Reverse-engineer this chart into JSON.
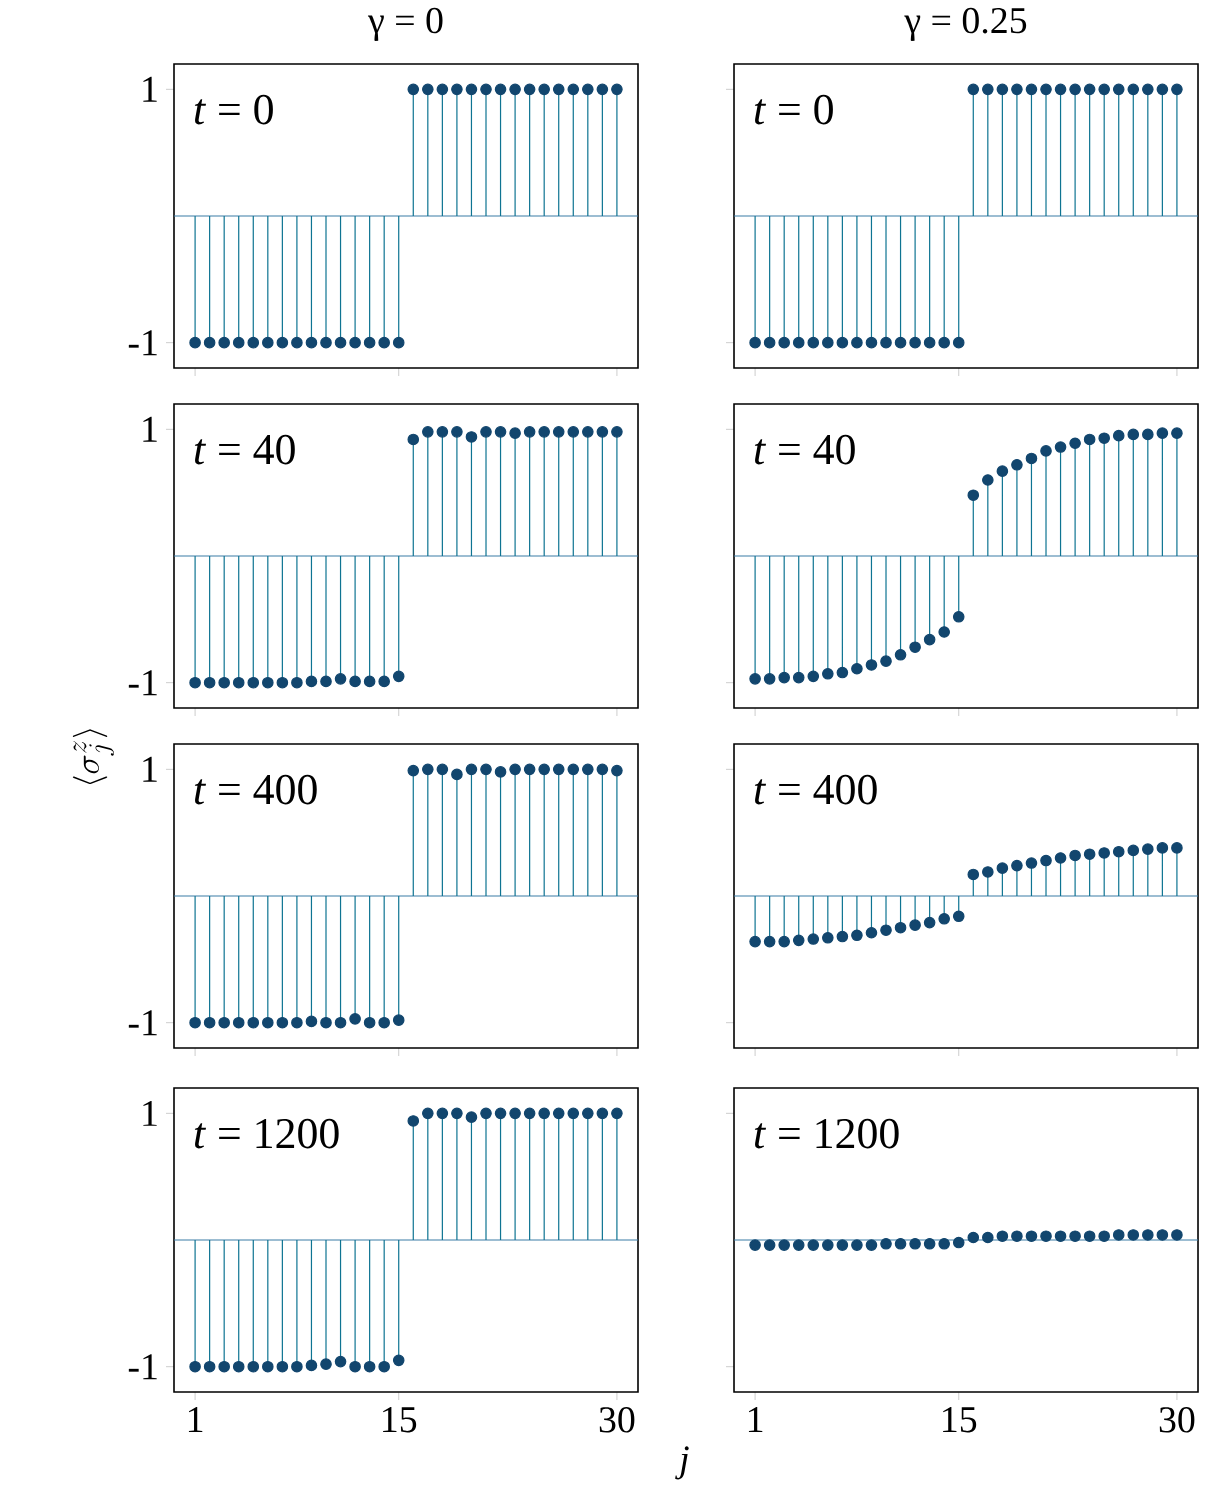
{
  "chart_data": [
    {
      "type": "lollipop",
      "title": "γ = 0",
      "ref_lines": [
        {
          "axis": "y",
          "value": 0,
          "color": "#3a7ca5"
        }
      ],
      "annotations": [
        "*t* = 0"
      ],
      "tick_labels": "y",
      "marker": "circle",
      "color": "#12466e",
      "xlim": [
        -0.45,
        31.45
      ],
      "ylim": [
        -1.2,
        1.2
      ],
      "xticks": [
        1,
        15,
        30
      ],
      "yticks": [
        -1,
        1
      ],
      "x": [
        1,
        2,
        3,
        4,
        5,
        6,
        7,
        8,
        9,
        10,
        11,
        12,
        13,
        14,
        15,
        16,
        17,
        18,
        19,
        20,
        21,
        22,
        23,
        24,
        25,
        26,
        27,
        28,
        29,
        30
      ],
      "values": [
        -1,
        -1,
        -1,
        -1,
        -1,
        -1,
        -1,
        -1,
        -1,
        -1,
        -1,
        -1,
        -1,
        -1,
        -1,
        1,
        1,
        1,
        1,
        1,
        1,
        1,
        1,
        1,
        1,
        1,
        1,
        1,
        1,
        1
      ]
    },
    {
      "type": "lollipop",
      "title": "γ = 0.25",
      "ref_lines": [
        {
          "axis": "y",
          "value": 0,
          "color": "#3a7ca5"
        }
      ],
      "annotations": [
        "*t* = 0"
      ],
      "tick_labels": false,
      "marker": "circle",
      "color": "#12466e",
      "xlim": [
        -0.45,
        31.45
      ],
      "ylim": [
        -1.2,
        1.2
      ],
      "xticks": [
        1,
        15,
        30
      ],
      "yticks": [
        -1,
        1
      ],
      "x": [
        1,
        2,
        3,
        4,
        5,
        6,
        7,
        8,
        9,
        10,
        11,
        12,
        13,
        14,
        15,
        16,
        17,
        18,
        19,
        20,
        21,
        22,
        23,
        24,
        25,
        26,
        27,
        28,
        29,
        30
      ],
      "values": [
        -1,
        -1,
        -1,
        -1,
        -1,
        -1,
        -1,
        -1,
        -1,
        -1,
        -1,
        -1,
        -1,
        -1,
        -1,
        1,
        1,
        1,
        1,
        1,
        1,
        1,
        1,
        1,
        1,
        1,
        1,
        1,
        1,
        1
      ]
    },
    {
      "type": "lollipop",
      "ylabel": "\\langle\\sigma_j^z\\rangle",
      "ref_lines": [
        {
          "axis": "y",
          "value": 0,
          "color": "#3a7ca5"
        }
      ],
      "annotations": [
        "*t* = 40"
      ],
      "tick_labels": "y",
      "marker": "circle",
      "color": "#12466e",
      "xlim": [
        -0.45,
        31.45
      ],
      "ylim": [
        -1.2,
        1.2
      ],
      "xticks": [
        1,
        15,
        30
      ],
      "yticks": [
        -1,
        1
      ],
      "x": [
        1,
        2,
        3,
        4,
        5,
        6,
        7,
        8,
        9,
        10,
        11,
        12,
        13,
        14,
        15,
        16,
        17,
        18,
        19,
        20,
        21,
        22,
        23,
        24,
        25,
        26,
        27,
        28,
        29,
        30
      ],
      "values": [
        -1,
        -1,
        -1,
        -1,
        -1,
        -1,
        -1,
        -1,
        -0.99,
        -0.99,
        -0.97,
        -0.99,
        -0.99,
        -0.99,
        -0.95,
        0.92,
        0.98,
        0.98,
        0.98,
        0.94,
        0.98,
        0.98,
        0.97,
        0.98,
        0.98,
        0.98,
        0.98,
        0.98,
        0.98,
        0.98
      ]
    },
    {
      "type": "lollipop",
      "ref_lines": [
        {
          "axis": "y",
          "value": 0,
          "color": "#3a7ca5"
        }
      ],
      "annotations": [
        "*t* = 40"
      ],
      "tick_labels": false,
      "marker": "circle",
      "color": "#12466e",
      "xlim": [
        -0.45,
        31.45
      ],
      "ylim": [
        -1.2,
        1.2
      ],
      "xticks": [
        1,
        15,
        30
      ],
      "yticks": [
        -1,
        1
      ],
      "x": [
        1,
        2,
        3,
        4,
        5,
        6,
        7,
        8,
        9,
        10,
        11,
        12,
        13,
        14,
        15,
        16,
        17,
        18,
        19,
        20,
        21,
        22,
        23,
        24,
        25,
        26,
        27,
        28,
        29,
        30
      ],
      "values": [
        -0.97,
        -0.97,
        -0.96,
        -0.96,
        -0.95,
        -0.93,
        -0.92,
        -0.89,
        -0.86,
        -0.83,
        -0.78,
        -0.72,
        -0.66,
        -0.6,
        -0.48,
        0.48,
        0.6,
        0.67,
        0.72,
        0.77,
        0.83,
        0.86,
        0.89,
        0.92,
        0.93,
        0.95,
        0.96,
        0.96,
        0.97,
        0.97
      ]
    },
    {
      "type": "lollipop",
      "ref_lines": [
        {
          "axis": "y",
          "value": 0,
          "color": "#3a7ca5"
        }
      ],
      "annotations": [
        "*t* = 400"
      ],
      "tick_labels": "y",
      "marker": "circle",
      "color": "#12466e",
      "xlim": [
        -0.45,
        31.45
      ],
      "ylim": [
        -1.2,
        1.2
      ],
      "xticks": [
        1,
        15,
        30
      ],
      "yticks": [
        -1,
        1
      ],
      "x": [
        1,
        2,
        3,
        4,
        5,
        6,
        7,
        8,
        9,
        10,
        11,
        12,
        13,
        14,
        15,
        16,
        17,
        18,
        19,
        20,
        21,
        22,
        23,
        24,
        25,
        26,
        27,
        28,
        29,
        30
      ],
      "values": [
        -1,
        -1,
        -1,
        -1,
        -1,
        -1,
        -1,
        -1,
        -0.99,
        -1,
        -1,
        -0.97,
        -1,
        -1,
        -0.98,
        0.99,
        1,
        1,
        0.96,
        1,
        1,
        0.98,
        1,
        1,
        1,
        1,
        1,
        1,
        1,
        0.99
      ]
    },
    {
      "type": "lollipop",
      "ref_lines": [
        {
          "axis": "y",
          "value": 0,
          "color": "#3a7ca5"
        }
      ],
      "annotations": [
        "*t* = 400"
      ],
      "tick_labels": false,
      "marker": "circle",
      "color": "#12466e",
      "xlim": [
        -0.45,
        31.45
      ],
      "ylim": [
        -1.2,
        1.2
      ],
      "xticks": [
        1,
        15,
        30
      ],
      "yticks": [
        -1,
        1
      ],
      "x": [
        1,
        2,
        3,
        4,
        5,
        6,
        7,
        8,
        9,
        10,
        11,
        12,
        13,
        14,
        15,
        16,
        17,
        18,
        19,
        20,
        21,
        22,
        23,
        24,
        25,
        26,
        27,
        28,
        29,
        30
      ],
      "values": [
        -0.36,
        -0.36,
        -0.36,
        -0.35,
        -0.34,
        -0.33,
        -0.32,
        -0.31,
        -0.29,
        -0.27,
        -0.25,
        -0.23,
        -0.21,
        -0.18,
        -0.16,
        0.17,
        0.19,
        0.22,
        0.24,
        0.26,
        0.28,
        0.3,
        0.32,
        0.33,
        0.34,
        0.35,
        0.36,
        0.37,
        0.38,
        0.38
      ]
    },
    {
      "type": "lollipop",
      "xlabel": "*j*",
      "ref_lines": [
        {
          "axis": "y",
          "value": 0,
          "color": "#3a7ca5"
        }
      ],
      "annotations": [
        "*t* = 1200"
      ],
      "marker": "circle",
      "color": "#12466e",
      "xlim": [
        -0.45,
        31.45
      ],
      "ylim": [
        -1.2,
        1.2
      ],
      "xticks": [
        1,
        15,
        30
      ],
      "yticks": [
        -1,
        1
      ],
      "x": [
        1,
        2,
        3,
        4,
        5,
        6,
        7,
        8,
        9,
        10,
        11,
        12,
        13,
        14,
        15,
        16,
        17,
        18,
        19,
        20,
        21,
        22,
        23,
        24,
        25,
        26,
        27,
        28,
        29,
        30
      ],
      "values": [
        -1,
        -1,
        -1,
        -1,
        -1,
        -1,
        -1,
        -1,
        -0.99,
        -0.98,
        -0.96,
        -1,
        -1,
        -1,
        -0.95,
        0.94,
        1,
        1,
        1,
        0.97,
        1,
        1,
        1,
        1,
        1,
        1,
        1,
        1,
        1,
        1
      ]
    },
    {
      "type": "lollipop",
      "ref_lines": [
        {
          "axis": "y",
          "value": 0,
          "color": "#3a7ca5"
        }
      ],
      "annotations": [
        "*t* = 1200"
      ],
      "tick_labels": "x",
      "marker": "circle",
      "color": "#12466e",
      "xlim": [
        -0.45,
        31.45
      ],
      "ylim": [
        -1.2,
        1.2
      ],
      "xticks": [
        1,
        15,
        30
      ],
      "yticks": [
        -1,
        1
      ],
      "x": [
        1,
        2,
        3,
        4,
        5,
        6,
        7,
        8,
        9,
        10,
        11,
        12,
        13,
        14,
        15,
        16,
        17,
        18,
        19,
        20,
        21,
        22,
        23,
        24,
        25,
        26,
        27,
        28,
        29,
        30
      ],
      "values": [
        -0.04,
        -0.04,
        -0.04,
        -0.04,
        -0.04,
        -0.04,
        -0.04,
        -0.04,
        -0.04,
        -0.03,
        -0.03,
        -0.03,
        -0.03,
        -0.03,
        -0.02,
        0.02,
        0.02,
        0.03,
        0.03,
        0.03,
        0.03,
        0.03,
        0.03,
        0.03,
        0.03,
        0.04,
        0.04,
        0.04,
        0.04,
        0.04
      ]
    }
  ]
}
